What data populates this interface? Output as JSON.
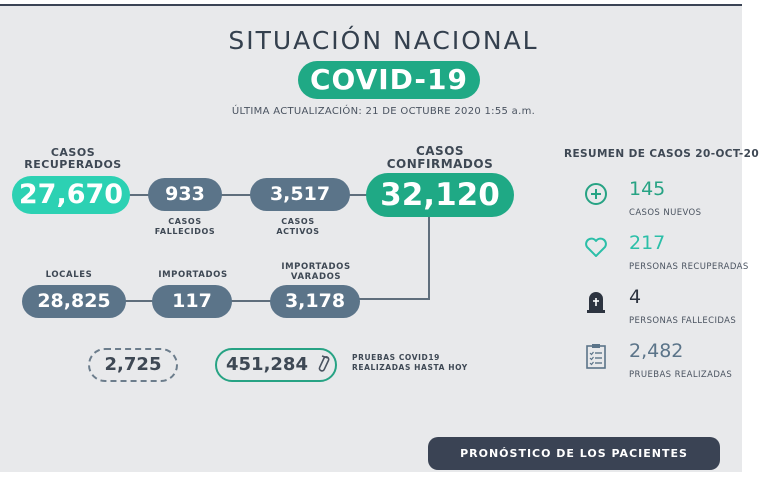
{
  "header": {
    "title": "SITUACIÓN NACIONAL",
    "badge": "COVID-19",
    "updated": "ÚLTIMA ACTUALIZACIÓN: 21 DE OCTUBRE 2020 1:55 a.m."
  },
  "row1": {
    "recuperados_label_1": "CASOS",
    "recuperados_label_2": "RECUPERADOS",
    "recuperados_value": "27,670",
    "fallecidos_value": "933",
    "fallecidos_label_1": "CASOS",
    "fallecidos_label_2": "FALLECIDOS",
    "activos_value": "3,517",
    "activos_label_1": "CASOS",
    "activos_label_2": "ACTIVOS",
    "confirmados_label_1": "CASOS",
    "confirmados_label_2": "CONFIRMADOS",
    "confirmados_value": "32,120"
  },
  "row2": {
    "locales_label": "LOCALES",
    "locales_value": "28,825",
    "importados_label": "IMPORTADOS",
    "importados_value": "117",
    "varados_label_1": "IMPORTADOS",
    "varados_label_2": "VARADOS",
    "varados_value": "3,178"
  },
  "row3": {
    "dashed_value": "2,725",
    "pruebas_value": "451,284",
    "pruebas_label_1": "PRUEBAS COVID19",
    "pruebas_label_2": "REALIZADAS HASTA HOY"
  },
  "summary": {
    "title": "RESUMEN DE CASOS 20-OCT-20",
    "items": [
      {
        "value": "145",
        "label": "CASOS NUEVOS",
        "icon": "plus-circle-icon",
        "color": "#27a384"
      },
      {
        "value": "217",
        "label": "PERSONAS RECUPERADAS",
        "icon": "heart-icon",
        "color": "#2bbfa8"
      },
      {
        "value": "4",
        "label": "PERSONAS FALLECIDAS",
        "icon": "tombstone-icon",
        "color": "#2d3440"
      },
      {
        "value": "2,482",
        "label": "PRUEBAS REALIZADAS",
        "icon": "clipboard-checklist-icon",
        "color": "#5b7489"
      }
    ]
  },
  "footer": {
    "button_label": "PRONÓSTICO DE LOS PACIENTES"
  },
  "colors": {
    "green": "#1fa985",
    "teal": "#2cd1b3",
    "slate": "#5b7489",
    "dark": "#3a4354"
  }
}
